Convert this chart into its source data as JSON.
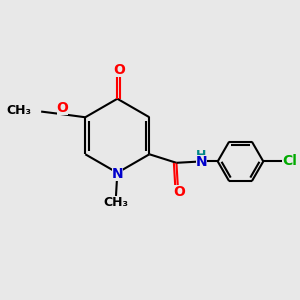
{
  "background_color": "#e8e8e8",
  "bond_color": "#000000",
  "atom_colors": {
    "O": "#ff0000",
    "N": "#0000cc",
    "Cl": "#00aa00",
    "H": "#008888",
    "C": "#000000"
  },
  "bond_width": 1.5,
  "figsize": [
    3.0,
    3.0
  ],
  "dpi": 100,
  "xlim": [
    0,
    10
  ],
  "ylim": [
    0,
    10
  ]
}
